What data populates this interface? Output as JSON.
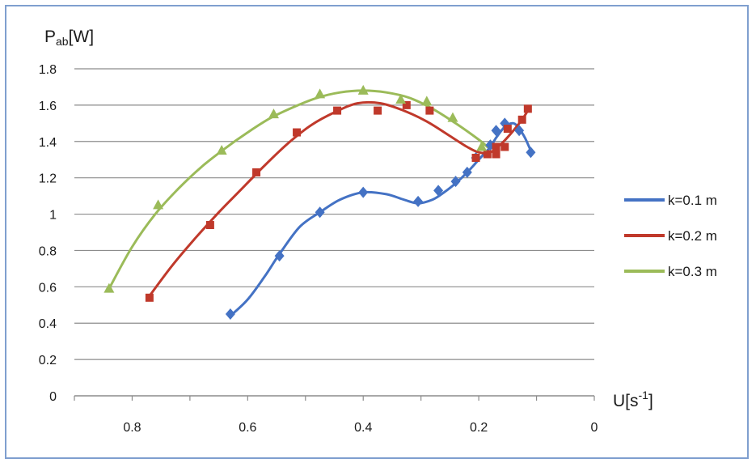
{
  "chart_data": {
    "type": "scatter",
    "ylabel": {
      "main": "P",
      "sub": "ab",
      "unit": "[W]"
    },
    "xlabel": {
      "main": "U[s",
      "sup": "-1",
      "close": "]"
    },
    "xlim": [
      0.9,
      0
    ],
    "ylim": [
      0,
      1.8
    ],
    "x_ticks": [
      {
        "value": 0.8,
        "label": "0.8"
      },
      {
        "value": 0.6,
        "label": "0.6"
      },
      {
        "value": 0.4,
        "label": "0.4"
      },
      {
        "value": 0.2,
        "label": "0.2"
      },
      {
        "value": 0,
        "label": "0"
      }
    ],
    "y_ticks": [
      {
        "value": 0,
        "label": "0"
      },
      {
        "value": 0.2,
        "label": "0.2"
      },
      {
        "value": 0.4,
        "label": "0.4"
      },
      {
        "value": 0.6,
        "label": "0.6"
      },
      {
        "value": 0.8,
        "label": "0.8"
      },
      {
        "value": 1.0,
        "label": "1"
      },
      {
        "value": 1.2,
        "label": "1.2"
      },
      {
        "value": 1.4,
        "label": "1.4"
      },
      {
        "value": 1.6,
        "label": "1.6"
      },
      {
        "value": 1.8,
        "label": "1.8"
      }
    ],
    "grid": "horizontal",
    "legend_position": "right",
    "series": [
      {
        "name": "k=0.1 m",
        "color": "#4472c4",
        "marker": "diamond",
        "points": [
          [
            0.63,
            0.45
          ],
          [
            0.545,
            0.77
          ],
          [
            0.475,
            1.01
          ],
          [
            0.4,
            1.12
          ],
          [
            0.305,
            1.07
          ],
          [
            0.27,
            1.13
          ],
          [
            0.24,
            1.18
          ],
          [
            0.22,
            1.23
          ],
          [
            0.205,
            1.31
          ],
          [
            0.18,
            1.38
          ],
          [
            0.17,
            1.46
          ],
          [
            0.155,
            1.5
          ],
          [
            0.13,
            1.46
          ],
          [
            0.11,
            1.34
          ]
        ],
        "curve": [
          [
            0.63,
            0.44
          ],
          [
            0.6,
            0.53
          ],
          [
            0.57,
            0.66
          ],
          [
            0.545,
            0.78
          ],
          [
            0.51,
            0.93
          ],
          [
            0.475,
            1.01
          ],
          [
            0.44,
            1.08
          ],
          [
            0.4,
            1.12
          ],
          [
            0.36,
            1.11
          ],
          [
            0.33,
            1.08
          ],
          [
            0.305,
            1.06
          ],
          [
            0.28,
            1.08
          ],
          [
            0.26,
            1.12
          ],
          [
            0.24,
            1.17
          ],
          [
            0.22,
            1.23
          ],
          [
            0.2,
            1.3
          ],
          [
            0.18,
            1.37
          ],
          [
            0.17,
            1.42
          ],
          [
            0.155,
            1.48
          ],
          [
            0.14,
            1.5
          ],
          [
            0.13,
            1.47
          ],
          [
            0.12,
            1.42
          ],
          [
            0.11,
            1.35
          ]
        ]
      },
      {
        "name": "k=0.2 m",
        "color": "#c0392b",
        "marker": "square",
        "points": [
          [
            0.77,
            0.54
          ],
          [
            0.665,
            0.94
          ],
          [
            0.585,
            1.23
          ],
          [
            0.515,
            1.45
          ],
          [
            0.445,
            1.57
          ],
          [
            0.375,
            1.57
          ],
          [
            0.325,
            1.6
          ],
          [
            0.285,
            1.57
          ],
          [
            0.205,
            1.31
          ],
          [
            0.185,
            1.33
          ],
          [
            0.17,
            1.33
          ],
          [
            0.17,
            1.37
          ],
          [
            0.155,
            1.37
          ],
          [
            0.15,
            1.47
          ],
          [
            0.125,
            1.52
          ],
          [
            0.115,
            1.58
          ]
        ],
        "curve": [
          [
            0.77,
            0.55
          ],
          [
            0.73,
            0.72
          ],
          [
            0.69,
            0.87
          ],
          [
            0.65,
            1.01
          ],
          [
            0.61,
            1.14
          ],
          [
            0.57,
            1.27
          ],
          [
            0.53,
            1.39
          ],
          [
            0.49,
            1.49
          ],
          [
            0.45,
            1.56
          ],
          [
            0.41,
            1.61
          ],
          [
            0.37,
            1.61
          ],
          [
            0.33,
            1.57
          ],
          [
            0.29,
            1.51
          ],
          [
            0.25,
            1.43
          ],
          [
            0.22,
            1.37
          ],
          [
            0.2,
            1.34
          ],
          [
            0.18,
            1.34
          ],
          [
            0.16,
            1.39
          ],
          [
            0.14,
            1.46
          ],
          [
            0.125,
            1.52
          ],
          [
            0.115,
            1.57
          ]
        ]
      },
      {
        "name": "k=0.3 m",
        "color": "#9bbb59",
        "marker": "triangle",
        "points": [
          [
            0.84,
            0.59
          ],
          [
            0.755,
            1.05
          ],
          [
            0.645,
            1.35
          ],
          [
            0.555,
            1.55
          ],
          [
            0.475,
            1.66
          ],
          [
            0.4,
            1.68
          ],
          [
            0.335,
            1.63
          ],
          [
            0.29,
            1.62
          ],
          [
            0.245,
            1.53
          ],
          [
            0.195,
            1.37
          ]
        ],
        "curve": [
          [
            0.84,
            0.59
          ],
          [
            0.8,
            0.82
          ],
          [
            0.76,
            1.0
          ],
          [
            0.72,
            1.14
          ],
          [
            0.68,
            1.26
          ],
          [
            0.64,
            1.36
          ],
          [
            0.6,
            1.45
          ],
          [
            0.56,
            1.53
          ],
          [
            0.52,
            1.59
          ],
          [
            0.48,
            1.64
          ],
          [
            0.44,
            1.67
          ],
          [
            0.4,
            1.68
          ],
          [
            0.36,
            1.67
          ],
          [
            0.32,
            1.64
          ],
          [
            0.28,
            1.58
          ],
          [
            0.24,
            1.5
          ],
          [
            0.2,
            1.41
          ],
          [
            0.185,
            1.37
          ]
        ]
      }
    ]
  }
}
